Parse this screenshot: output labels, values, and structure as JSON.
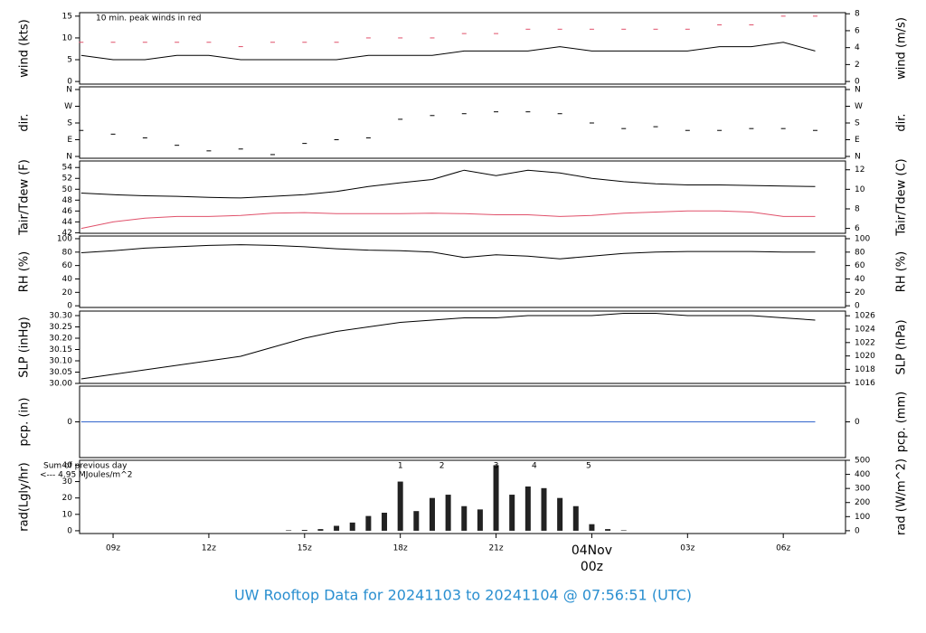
{
  "title": "UW Rooftop Data for 20241103  to  20241104 @ 07:56:51  (UTC)",
  "chart_data": [
    {
      "type": "line",
      "ylabel": "wind (kts)",
      "y2label": "wind (m/s)",
      "annotation": "10 min. peak winds in red",
      "annotation_color": "#e0506a",
      "xlim": [
        7.95,
        31.95
      ],
      "ylim": [
        -0.6,
        15.8
      ],
      "yticks": [
        0,
        5,
        10,
        15
      ],
      "y2lim": [
        -0.31,
        8.13
      ],
      "y2ticks": [
        0,
        2,
        4,
        6,
        8
      ],
      "x": [
        8,
        9,
        10,
        11,
        12,
        13,
        14,
        15,
        16,
        17,
        18,
        19,
        20,
        21,
        22,
        23,
        24,
        25,
        26,
        27,
        28,
        29,
        30,
        31
      ],
      "series": [
        {
          "name": "wind",
          "type": "line",
          "color": "#000000",
          "values": [
            6,
            5,
            5,
            6,
            6,
            5,
            5,
            5,
            5,
            6,
            6,
            6,
            7,
            7,
            7,
            8,
            7,
            7,
            7,
            7,
            8,
            8,
            9,
            7
          ]
        },
        {
          "name": "peak",
          "type": "scatter",
          "color": "#e0506a",
          "values": [
            9,
            9,
            9,
            9,
            9,
            8,
            9,
            9,
            9,
            10,
            10,
            10,
            11,
            11,
            12,
            12,
            12,
            12,
            12,
            12,
            13,
            13,
            15,
            15
          ]
        }
      ]
    },
    {
      "type": "line",
      "ylabel": "dir.",
      "y2label": "dir.",
      "xlim": [
        7.95,
        31.95
      ],
      "ylim": [
        -9.7,
        374.6
      ],
      "yticks": [
        {
          "value": 0,
          "label": "N"
        },
        {
          "value": 90,
          "label": "E"
        },
        {
          "value": 180,
          "label": "S"
        },
        {
          "value": 270,
          "label": "W"
        },
        {
          "value": 360,
          "label": "N"
        }
      ],
      "y2lim": [
        -9.7,
        374.6
      ],
      "y2ticks": [
        {
          "value": 0,
          "label": "N"
        },
        {
          "value": 90,
          "label": "E"
        },
        {
          "value": 180,
          "label": "S"
        },
        {
          "value": 270,
          "label": "W"
        },
        {
          "value": 360,
          "label": "N"
        }
      ],
      "x": [
        8,
        9,
        10,
        11,
        12,
        13,
        14,
        15,
        16,
        17,
        18,
        19,
        20,
        21,
        22,
        23,
        24,
        25,
        26,
        27,
        28,
        29,
        30,
        31
      ],
      "series": [
        {
          "name": "dir",
          "type": "scatter",
          "color": "#000000",
          "values": [
            140,
            120,
            100,
            60,
            30,
            40,
            10,
            70,
            90,
            100,
            200,
            220,
            230,
            240,
            240,
            230,
            180,
            150,
            160,
            140,
            140,
            150,
            150,
            140
          ]
        }
      ]
    },
    {
      "type": "line",
      "ylabel": "Tair/Tdew (F)",
      "y2label": "Tair/Tdew (C)",
      "xlim": [
        7.95,
        31.95
      ],
      "ylim": [
        41.9,
        55.2
      ],
      "yticks": [
        42,
        44,
        46,
        48,
        50,
        52,
        54
      ],
      "y2lim": [
        5.5,
        12.9
      ],
      "y2ticks": [
        6,
        8,
        10,
        12
      ],
      "x": [
        8,
        9,
        10,
        11,
        12,
        13,
        14,
        15,
        16,
        17,
        18,
        19,
        20,
        21,
        22,
        23,
        24,
        25,
        26,
        27,
        28,
        29,
        30,
        31
      ],
      "series": [
        {
          "name": "Tair",
          "type": "line",
          "color": "#000000",
          "values": [
            49.3,
            49.0,
            48.8,
            48.7,
            48.5,
            48.4,
            48.7,
            49.0,
            49.6,
            50.5,
            51.2,
            51.8,
            53.5,
            52.5,
            53.5,
            53.0,
            52.0,
            51.4,
            51.0,
            50.8,
            50.8,
            50.7,
            50.6,
            50.5
          ]
        },
        {
          "name": "Tdew",
          "type": "line",
          "color": "#e0506a",
          "values": [
            42.8,
            44,
            44.7,
            45,
            45,
            45.2,
            45.6,
            45.7,
            45.5,
            45.5,
            45.5,
            45.6,
            45.5,
            45.3,
            45.3,
            45,
            45.2,
            45.6,
            45.8,
            46,
            46,
            45.8,
            45,
            45
          ]
        }
      ]
    },
    {
      "type": "line",
      "ylabel": "RH (%)",
      "y2label": "RH (%)",
      "xlim": [
        7.95,
        31.95
      ],
      "ylim": [
        -2.5,
        104
      ],
      "yticks": [
        0,
        20,
        40,
        60,
        80,
        100
      ],
      "y2lim": [
        -2.5,
        104
      ],
      "y2ticks": [
        0,
        20,
        40,
        60,
        80,
        100
      ],
      "x": [
        8,
        9,
        10,
        11,
        12,
        13,
        14,
        15,
        16,
        17,
        18,
        19,
        20,
        21,
        22,
        23,
        24,
        25,
        26,
        27,
        28,
        29,
        30,
        31
      ],
      "series": [
        {
          "name": "RH",
          "type": "line",
          "color": "#000000",
          "values": [
            79,
            82,
            86,
            88,
            90,
            91,
            90,
            88,
            85,
            83,
            82,
            80,
            72,
            76,
            74,
            70,
            74,
            78,
            80,
            81,
            81,
            81,
            80,
            80
          ]
        }
      ]
    },
    {
      "type": "line",
      "ylabel": "SLP (inHg)",
      "y2label": "SLP (hPa)",
      "xlim": [
        7.95,
        31.95
      ],
      "ylim": [
        30.0,
        30.32
      ],
      "yticks": [
        {
          "value": 30.0,
          "label": "30.00"
        },
        {
          "value": 30.05,
          "label": "30.05"
        },
        {
          "value": 30.1,
          "label": "30.10"
        },
        {
          "value": 30.15,
          "label": "30.15"
        },
        {
          "value": 30.2,
          "label": "30.20"
        },
        {
          "value": 30.25,
          "label": "30.25"
        },
        {
          "value": 30.3,
          "label": "30.30"
        }
      ],
      "y2lim": [
        1015.9,
        1026.7
      ],
      "y2ticks": [
        1016,
        1018,
        1020,
        1022,
        1024,
        1026
      ],
      "x": [
        8,
        9,
        10,
        11,
        12,
        13,
        14,
        15,
        16,
        17,
        18,
        19,
        20,
        21,
        22,
        23,
        24,
        25,
        26,
        27,
        28,
        29,
        30,
        31
      ],
      "series": [
        {
          "name": "SLP",
          "type": "line",
          "color": "#000000",
          "values": [
            30.02,
            30.04,
            30.06,
            30.08,
            30.1,
            30.12,
            30.16,
            30.2,
            30.23,
            30.25,
            30.27,
            30.28,
            30.29,
            30.29,
            30.3,
            30.3,
            30.3,
            30.31,
            30.31,
            30.3,
            30.3,
            30.3,
            30.29,
            30.28
          ]
        }
      ]
    },
    {
      "type": "line",
      "ylabel": "pcp. (in)",
      "y2label": "pcp. (mm)",
      "xlim": [
        7.95,
        31.95
      ],
      "ylim": [
        -1,
        1
      ],
      "yticks": [
        0
      ],
      "y2lim": [
        -1,
        1
      ],
      "y2ticks": [
        0
      ],
      "x": [
        8,
        9,
        10,
        11,
        12,
        13,
        14,
        15,
        16,
        17,
        18,
        19,
        20,
        21,
        22,
        23,
        24,
        25,
        26,
        27,
        28,
        29,
        30,
        31
      ],
      "series": [
        {
          "name": "pcp",
          "type": "line",
          "color": "#3366cc",
          "values": [
            0,
            0,
            0,
            0,
            0,
            0,
            0,
            0,
            0,
            0,
            0,
            0,
            0,
            0,
            0,
            0,
            0,
            0,
            0,
            0,
            0,
            0,
            0,
            0
          ]
        }
      ]
    },
    {
      "type": "bar",
      "ylabel": "rad(Lgly/hr)",
      "y2label": "rad (W/m^2)",
      "annotations": [
        "Sum of previous day",
        "<--- 4.95 MJoules/m^2"
      ],
      "annotation_color": "#9933cc",
      "hour_marks": {
        "x": [
          18,
          19.3,
          21,
          22.2,
          23.9
        ],
        "labels": [
          "1",
          "2",
          "3",
          "4",
          "5"
        ]
      },
      "xlim": [
        7.95,
        31.95
      ],
      "ylim": [
        -1.7,
        43
      ],
      "yticks": [
        0,
        10,
        20,
        30,
        40
      ],
      "y2lim": [
        -20,
        500
      ],
      "y2ticks": [
        0,
        100,
        200,
        300,
        400,
        500
      ],
      "xticks": [
        {
          "value": 9,
          "label": "09z"
        },
        {
          "value": 12,
          "label": "12z"
        },
        {
          "value": 15,
          "label": "15z"
        },
        {
          "value": 18,
          "label": "18z"
        },
        {
          "value": 21,
          "label": "21z"
        },
        {
          "value": 24,
          "label": "04Nov"
        },
        {
          "value": 27,
          "label": "03z"
        },
        {
          "value": 30,
          "label": "06z"
        }
      ],
      "date_sublabel": "00z",
      "date_color": "#d04060",
      "x": [
        14.5,
        15,
        15.5,
        16,
        16.5,
        17,
        17.5,
        18,
        18.5,
        19,
        19.5,
        20,
        20.5,
        21,
        21.5,
        22,
        22.5,
        23,
        23.5,
        24,
        24.5,
        25
      ],
      "series": [
        {
          "name": "rad",
          "type": "bar",
          "color": "#222222",
          "values": [
            0.3,
            0.5,
            1,
            3,
            5,
            9,
            11,
            30,
            12,
            20,
            22,
            15,
            13,
            40,
            22,
            27,
            26,
            20,
            15,
            4,
            1,
            0.3
          ]
        }
      ]
    }
  ]
}
